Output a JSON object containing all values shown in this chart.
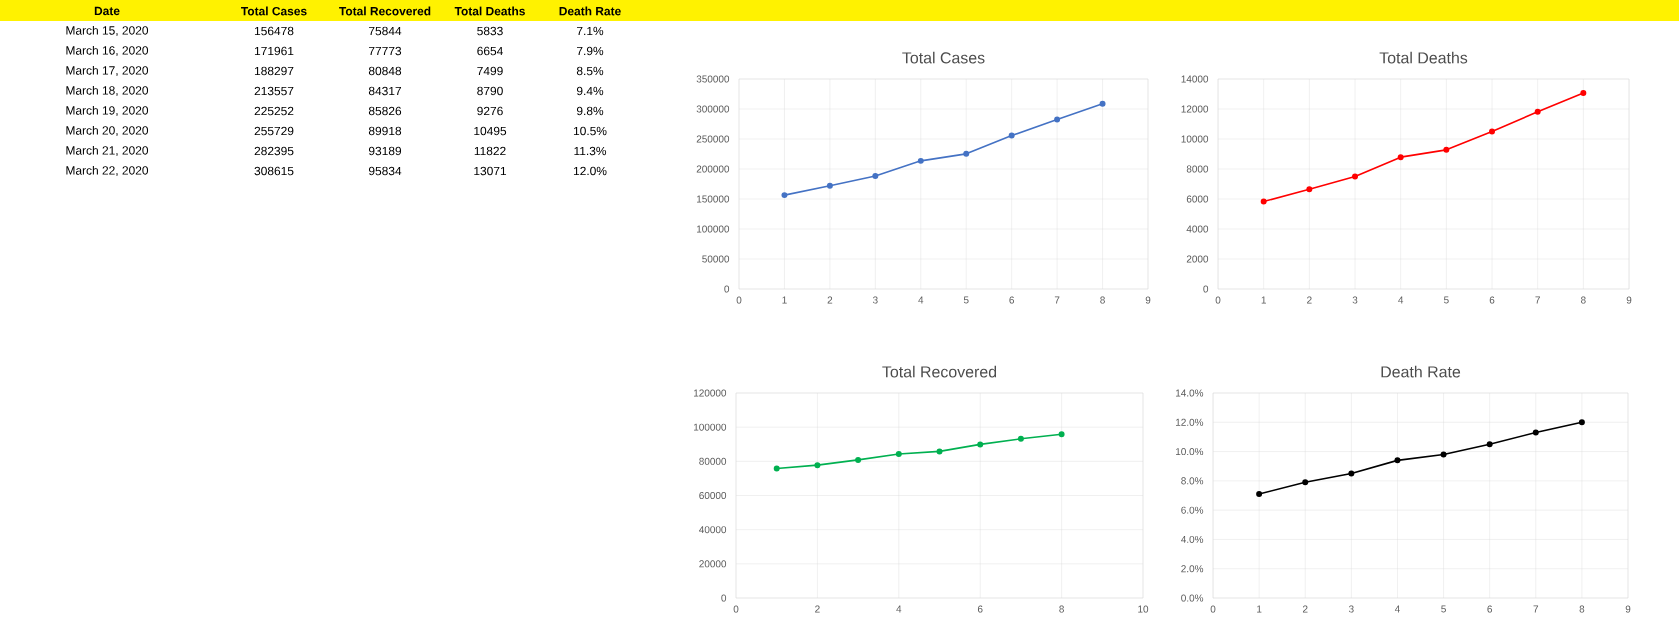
{
  "chart_data": [
    {
      "type": "other",
      "categories": [
        "Date",
        "Total Cases",
        "Total Recovered",
        "Total Deaths",
        "Death Rate"
      ],
      "annotations": [
        "March 15, 2020",
        "156478",
        "75844",
        "5833",
        "7.1%",
        "March 16, 2020",
        "171961",
        "77773",
        "6654",
        "7.9%",
        "March 17, 2020",
        "188297",
        "80848",
        "7499",
        "8.5%",
        "March 18, 2020",
        "213557",
        "84317",
        "8790",
        "9.4%",
        "March 19, 2020",
        "225252",
        "85826",
        "9276",
        "9.8%",
        "March 20, 2020",
        "255729",
        "89918",
        "10495",
        "10.5%",
        "March 21, 2020",
        "282395",
        "93189",
        "11822",
        "11.3%",
        "March 22, 2020",
        "308615",
        "95834",
        "13071",
        "12.0%"
      ]
    },
    {
      "type": "line",
      "title": "Total Cases",
      "x": [
        1,
        2,
        3,
        4,
        5,
        6,
        7,
        8
      ],
      "values": [
        156478,
        171961,
        188297,
        213557,
        225252,
        255729,
        282395,
        308615
      ],
      "color": "#4472c4",
      "marker": "circle",
      "grid": true,
      "xlim": [
        0,
        9
      ],
      "xticks": [
        0,
        1,
        2,
        3,
        4,
        5,
        6,
        7,
        8,
        9
      ],
      "ylim": [
        0,
        350000
      ],
      "yticks": [
        0,
        50000,
        100000,
        150000,
        200000,
        250000,
        300000,
        350000
      ]
    },
    {
      "type": "line",
      "title": "Total Deaths",
      "x": [
        1,
        2,
        3,
        4,
        5,
        6,
        7,
        8
      ],
      "values": [
        5833,
        6654,
        7499,
        8790,
        9276,
        10495,
        11822,
        13071
      ],
      "color": "#ff0000",
      "marker": "circle",
      "grid": true,
      "xlim": [
        0,
        9
      ],
      "xticks": [
        0,
        1,
        2,
        3,
        4,
        5,
        6,
        7,
        8,
        9
      ],
      "ylim": [
        0,
        14000
      ],
      "yticks": [
        0,
        2000,
        4000,
        6000,
        8000,
        10000,
        12000,
        14000
      ]
    },
    {
      "type": "line",
      "title": "Total Recovered",
      "x": [
        1,
        2,
        3,
        4,
        5,
        6,
        7,
        8
      ],
      "values": [
        75844,
        77773,
        80848,
        84317,
        85826,
        89918,
        93189,
        95834
      ],
      "color": "#00b050",
      "marker": "circle",
      "grid": true,
      "xlim": [
        0,
        10
      ],
      "xticks": [
        0,
        2,
        4,
        6,
        8,
        10
      ],
      "ylim": [
        0,
        120000
      ],
      "yticks": [
        0,
        20000,
        40000,
        60000,
        80000,
        100000,
        120000
      ]
    },
    {
      "type": "line",
      "title": "Death Rate",
      "x": [
        1,
        2,
        3,
        4,
        5,
        6,
        7,
        8
      ],
      "values": [
        7.1,
        7.9,
        8.5,
        9.4,
        9.8,
        10.5,
        11.3,
        12.0
      ],
      "color": "#000000",
      "marker": "circle",
      "grid": true,
      "xlim": [
        0,
        9
      ],
      "xticks": [
        0,
        1,
        2,
        3,
        4,
        5,
        6,
        7,
        8,
        9
      ],
      "ylim": [
        0,
        14
      ],
      "yticks": [
        {
          "value": 0,
          "label": "0.0%"
        },
        {
          "value": 2,
          "label": "2.0%"
        },
        {
          "value": 4,
          "label": "4.0%"
        },
        {
          "value": 6,
          "label": "6.0%"
        },
        {
          "value": 8,
          "label": "8.0%"
        },
        {
          "value": 10,
          "label": "10.0%"
        },
        {
          "value": 12,
          "label": "12.0%"
        },
        {
          "value": 14,
          "label": "14.0%"
        }
      ]
    }
  ]
}
